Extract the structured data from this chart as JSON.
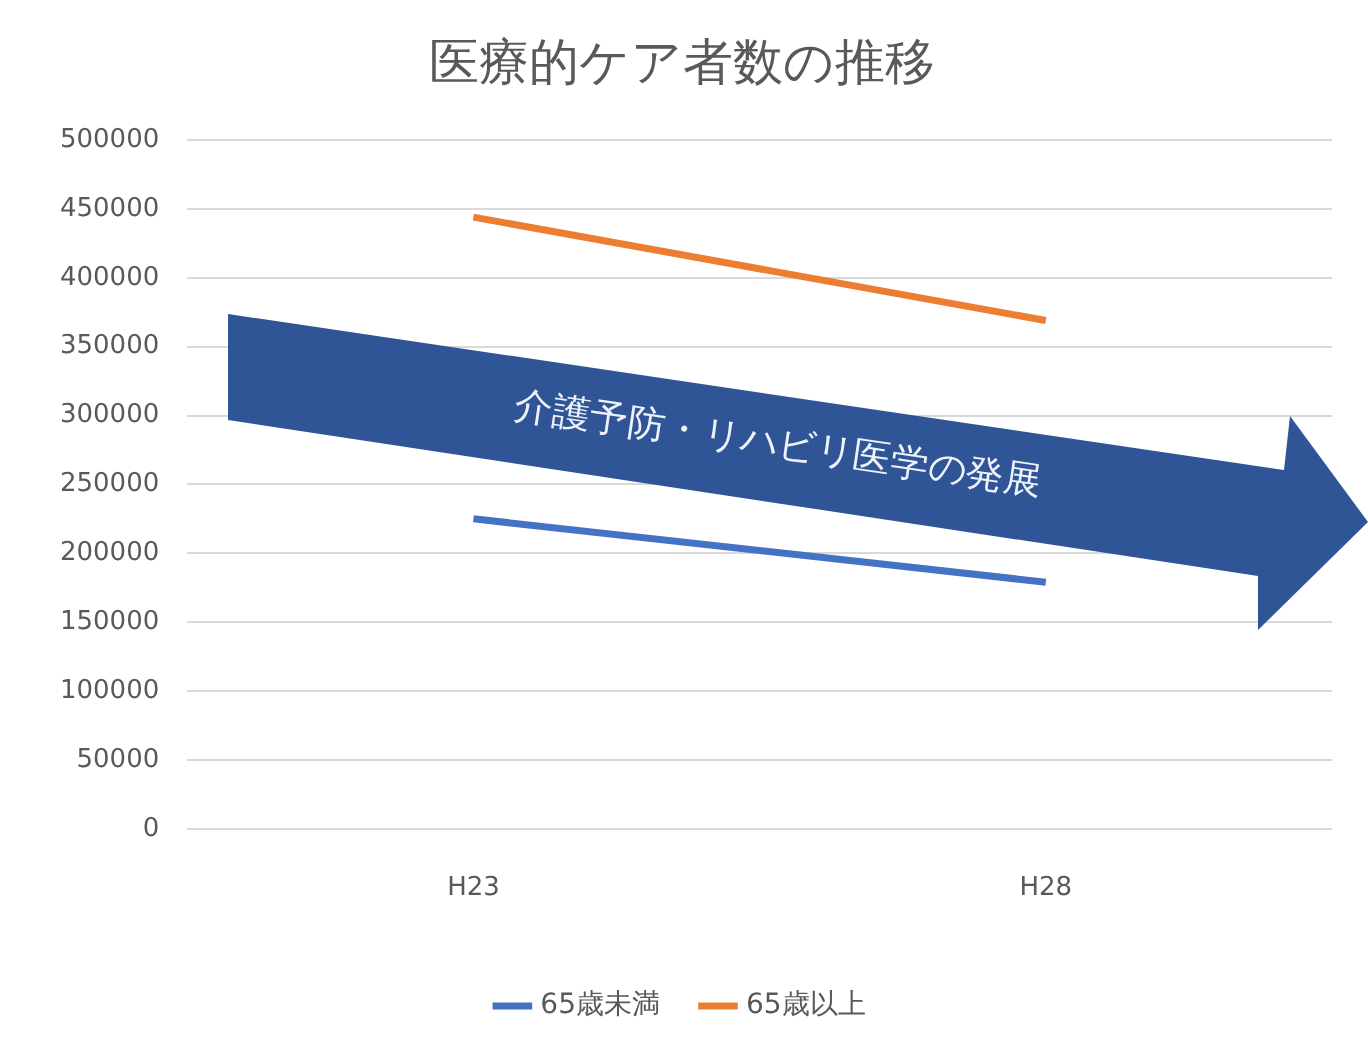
{
  "chart_data": {
    "type": "line",
    "title": "医療的ケア者数の推移",
    "categories": [
      "H23",
      "H28"
    ],
    "series": [
      {
        "name": "65歳未満",
        "color": "#4472c4",
        "values": [
          225000,
          179000
        ]
      },
      {
        "name": "65歳以上",
        "color": "#ed7d31",
        "values": [
          444000,
          369000
        ]
      }
    ],
    "ylim": [
      0,
      500000
    ],
    "yticks": [
      0,
      50000,
      100000,
      150000,
      200000,
      250000,
      300000,
      350000,
      400000,
      450000,
      500000
    ],
    "grid": "y",
    "legend": "bottom",
    "marker": "none",
    "line_style": "solid",
    "annotations": [
      "介護予防・リハビリ医学の発展"
    ]
  }
}
